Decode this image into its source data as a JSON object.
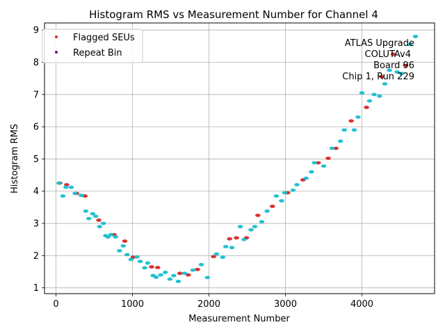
{
  "chart_data": {
    "type": "scatter",
    "title": "Histogram RMS vs Measurement Number for Channel 4",
    "xlabel": "Measurement Number",
    "ylabel": "Histogram RMS",
    "xlim": [
      -150,
      4950
    ],
    "ylim": [
      0.82,
      9.22
    ],
    "xticks": [
      0,
      1000,
      2000,
      3000,
      4000
    ],
    "yticks": [
      1,
      2,
      3,
      4,
      5,
      6,
      7,
      8,
      9
    ],
    "grid": true,
    "legend_placement": "top-left",
    "annotation_lines": [
      "ATLAS Upgrade",
      "COLUTAv4",
      "Board 96",
      "Chip 1, Run 229"
    ],
    "colors": {
      "main": "#17becf",
      "flagged": "#d62728",
      "repeat": "#800080"
    },
    "series": [
      {
        "name": "Flagged SEUs",
        "marker_color": "#d62728",
        "x": [
          50,
          140,
          270,
          380,
          560,
          760,
          900,
          1010,
          1250,
          1330,
          1620,
          1730,
          1850,
          2060,
          2270,
          2360,
          2490,
          2640,
          2830,
          3030,
          3230,
          3430,
          3560,
          3660,
          3860,
          4060,
          4260,
          4410,
          4570
        ],
        "y": [
          4.25,
          4.2,
          3.93,
          3.85,
          3.1,
          2.65,
          2.45,
          1.95,
          1.65,
          1.63,
          1.45,
          1.4,
          1.57,
          1.97,
          2.52,
          2.55,
          2.55,
          3.25,
          3.53,
          3.95,
          4.35,
          4.88,
          5.02,
          5.33,
          6.18,
          6.6,
          7.55,
          8.25,
          7.9
        ]
      },
      {
        "name": "Repeat Bin",
        "marker_color": "#800080",
        "x": [],
        "y": []
      },
      {
        "name": "",
        "marker_color": "#17becf",
        "x": [
          40,
          90,
          130,
          200,
          250,
          330,
          390,
          430,
          480,
          520,
          570,
          620,
          650,
          680,
          720,
          780,
          830,
          880,
          930,
          980,
          1060,
          1100,
          1160,
          1200,
          1270,
          1310,
          1370,
          1430,
          1490,
          1540,
          1600,
          1680,
          1790,
          1900,
          1980,
          2100,
          2180,
          2220,
          2300,
          2410,
          2460,
          2550,
          2600,
          2690,
          2760,
          2880,
          2950,
          2990,
          3100,
          3150,
          3270,
          3340,
          3380,
          3500,
          3610,
          3720,
          3770,
          3900,
          3950,
          4000,
          4100,
          4160,
          4230,
          4300,
          4360,
          4460,
          4520,
          4630,
          4700
        ],
        "y": [
          4.25,
          3.85,
          4.12,
          4.12,
          3.93,
          3.87,
          3.38,
          3.15,
          3.3,
          3.22,
          2.9,
          3.0,
          2.62,
          2.58,
          2.65,
          2.58,
          2.15,
          2.3,
          2.03,
          1.88,
          1.96,
          1.82,
          1.62,
          1.77,
          1.38,
          1.33,
          1.4,
          1.48,
          1.27,
          1.38,
          1.2,
          1.45,
          1.55,
          1.72,
          1.32,
          2.05,
          1.95,
          2.28,
          2.25,
          2.9,
          2.5,
          2.8,
          2.9,
          3.05,
          3.38,
          3.85,
          3.7,
          3.95,
          4.03,
          4.2,
          4.4,
          4.6,
          4.88,
          4.78,
          5.33,
          5.55,
          5.9,
          5.9,
          6.3,
          7.05,
          6.8,
          7.0,
          6.95,
          7.33,
          7.75,
          7.7,
          7.65,
          8.55,
          8.8
        ]
      }
    ]
  }
}
